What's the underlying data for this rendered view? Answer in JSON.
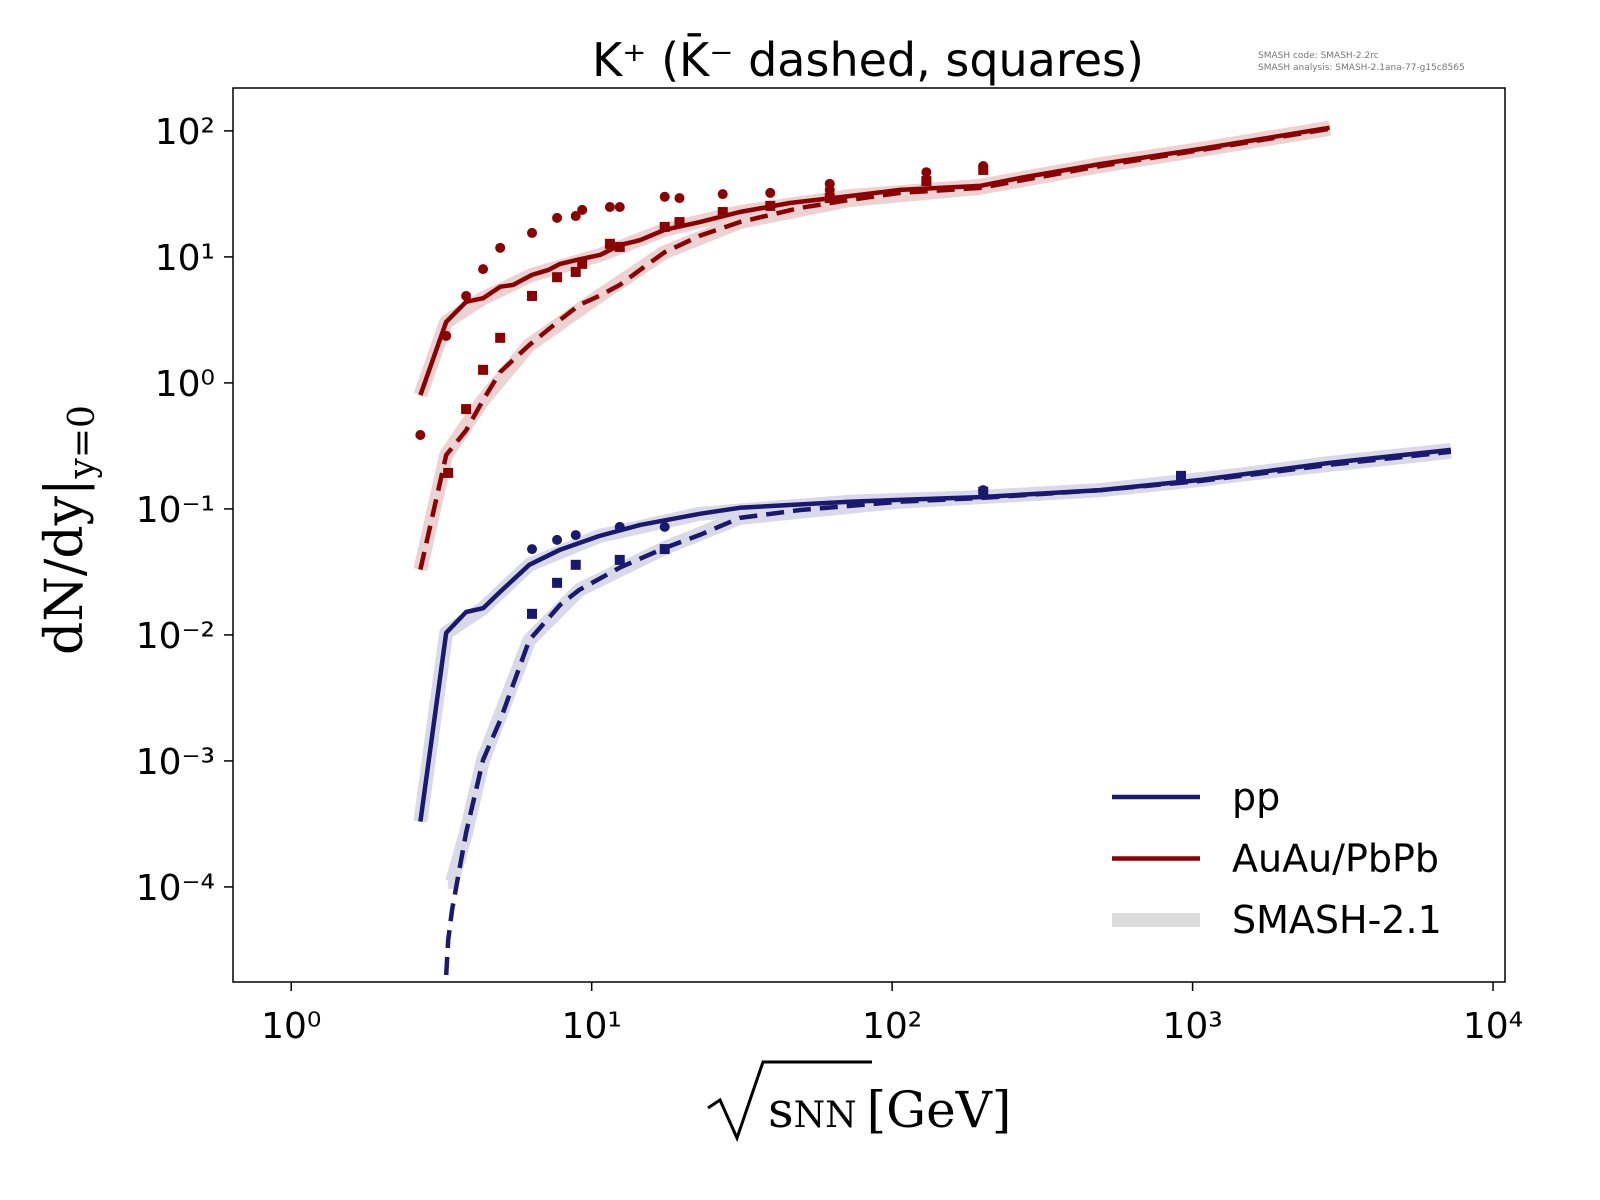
{
  "chart_data": {
    "type": "line",
    "title": "K⁺ (K̄⁻ dashed, squares)",
    "annotations": [
      "SMASH code:      SMASH-2.2rc",
      "SMASH analysis: SMASH-2.1ana-77-g15c8565"
    ],
    "xlabel": {
      "root": "s",
      "sub": "NN",
      "unit": "[GeV]"
    },
    "ylabel": {
      "main": "dN/dy|",
      "sub": "y=0"
    },
    "xscale": "log",
    "yscale": "log",
    "xlim": [
      0.64,
      10960
    ],
    "ylim": [
      1.76e-05,
      219
    ],
    "xticks": [
      {
        "value": 1,
        "label": "10⁰"
      },
      {
        "value": 10,
        "label": "10¹"
      },
      {
        "value": 100,
        "label": "10²"
      },
      {
        "value": 1000,
        "label": "10³"
      },
      {
        "value": 10000,
        "label": "10⁴"
      }
    ],
    "yticks": [
      {
        "value": 0.0001,
        "label": "10⁻⁴"
      },
      {
        "value": 0.001,
        "label": "10⁻³"
      },
      {
        "value": 0.01,
        "label": "10⁻²"
      },
      {
        "value": 0.1,
        "label": "10⁻¹"
      },
      {
        "value": 1,
        "label": "10⁰"
      },
      {
        "value": 10,
        "label": "10¹"
      },
      {
        "value": 100,
        "label": "10²"
      }
    ],
    "series": [
      {
        "style": "band",
        "color": "#ecd2d2",
        "x": [
          2.69,
          3.28,
          4.35,
          6.33,
          10.7,
          17.5,
          31.1,
          72,
          196,
          494,
          1066,
          2860
        ],
        "values": [
          0.8,
          3.05,
          4.7,
          7.2,
          10.4,
          16.4,
          22.7,
          30.4,
          36.6,
          54.6,
          72,
          106
        ]
      },
      {
        "style": "band",
        "color": "#ecd2d2",
        "x": [
          2.69,
          3.28,
          4.35,
          6.2,
          10.6,
          17.5,
          31.1,
          72,
          196,
          494,
          1066,
          2860
        ],
        "values": [
          0.033,
          0.268,
          0.73,
          2.0,
          4.9,
          10.9,
          18.9,
          28.3,
          35.3,
          52.7,
          70.5,
          104
        ]
      },
      {
        "style": "band",
        "color": "#d9d9e8",
        "x": [
          2.69,
          3.28,
          4.35,
          6.2,
          10.6,
          22.9,
          72,
          196,
          494,
          1066,
          2860,
          7240
        ],
        "values": [
          0.00033,
          0.0104,
          0.0163,
          0.036,
          0.061,
          0.0915,
          0.114,
          0.124,
          0.141,
          0.17,
          0.232,
          0.294
        ]
      },
      {
        "style": "band",
        "color": "#d9d9e8",
        "x": [
          3.33,
          3.43,
          3.82,
          4.35,
          6.2,
          9.1,
          17.5,
          31.1,
          106,
          494,
          2860,
          7240
        ],
        "values": [
          0.00011,
          0.00011,
          0.00027,
          0.00102,
          0.0091,
          0.0228,
          0.049,
          0.0848,
          0.114,
          0.141,
          0.224,
          0.284
        ]
      },
      {
        "style": "solid",
        "color": "#8b0000",
        "x": [
          2.69,
          3.28,
          3.82,
          4.35,
          4.96,
          5.48,
          6.33,
          7.2,
          7.85,
          9.0,
          10.7,
          12.4,
          14.5,
          17.5,
          22.9,
          31.1,
          45.6,
          72,
          106,
          196,
          267,
          494,
          1066,
          2860
        ],
        "values": [
          0.8,
          3.05,
          4.4,
          4.7,
          5.8,
          6.0,
          7.2,
          7.9,
          8.8,
          9.5,
          10.4,
          12.4,
          13.6,
          16.4,
          18.9,
          22.7,
          26.8,
          30.4,
          34,
          36.6,
          42.4,
          54.6,
          72,
          106
        ]
      },
      {
        "style": "dashed",
        "color": "#8b0000",
        "x": [
          2.69,
          3.28,
          3.82,
          4.35,
          4.96,
          6.2,
          7.85,
          9.1,
          10.6,
          12.4,
          14.5,
          17.5,
          22.9,
          31.1,
          49.4,
          72,
          106,
          196,
          494,
          1066,
          2860
        ],
        "values": [
          0.033,
          0.268,
          0.42,
          0.73,
          1.22,
          2.0,
          3.16,
          4.16,
          4.9,
          6.0,
          7.9,
          10.9,
          14.7,
          18.9,
          24.5,
          28.3,
          32.2,
          35.3,
          52.7,
          70.5,
          104
        ]
      },
      {
        "style": "solid",
        "color": "#191970",
        "x": [
          2.69,
          3.28,
          3.82,
          4.35,
          4.96,
          6.2,
          7.85,
          10.6,
          14.5,
          22.9,
          31.1,
          72,
          196,
          494,
          1066,
          2860,
          7240
        ],
        "values": [
          0.00033,
          0.0104,
          0.0152,
          0.0163,
          0.022,
          0.036,
          0.0475,
          0.061,
          0.0747,
          0.0915,
          0.102,
          0.114,
          0.124,
          0.141,
          0.17,
          0.232,
          0.294
        ]
      },
      {
        "style": "dashed",
        "color": "#191970",
        "x": [
          3.28,
          3.33,
          3.43,
          3.82,
          4.35,
          4.96,
          6.2,
          7.85,
          9.1,
          12.4,
          17.5,
          22.9,
          31.1,
          49.4,
          106,
          196,
          494,
          1066,
          2860,
          7240
        ],
        "values": [
          2e-05,
          3.8e-05,
          6.6e-05,
          0.00027,
          0.00102,
          0.0021,
          0.0091,
          0.0173,
          0.0228,
          0.0342,
          0.049,
          0.0622,
          0.0848,
          0.098,
          0.114,
          0.122,
          0.141,
          0.167,
          0.224,
          0.284
        ]
      },
      {
        "style": "circle",
        "color": "#8b0000",
        "x": [
          2.69,
          3.28,
          3.82,
          4.35,
          4.96,
          6.33,
          7.67,
          8.85,
          9.3,
          11.5,
          12.4,
          17.5,
          19.6,
          27.3,
          39.3,
          62,
          62,
          130,
          201
        ],
        "values": [
          0.386,
          2.36,
          4.9,
          8.0,
          11.8,
          15.5,
          20.4,
          21.1,
          23.6,
          24.9,
          24.9,
          30,
          29.3,
          31.5,
          32.2,
          38,
          34,
          47,
          52.6
        ]
      },
      {
        "style": "square",
        "color": "#8b0000",
        "x": [
          3.33,
          3.82,
          4.35,
          4.96,
          6.33,
          7.67,
          8.85,
          9.3,
          11.5,
          12.4,
          17.5,
          19.6,
          27.3,
          39.3,
          62,
          130,
          201
        ],
        "values": [
          0.193,
          0.62,
          1.27,
          2.28,
          4.9,
          6.9,
          7.6,
          8.8,
          12.7,
          12,
          17.3,
          18.9,
          22.7,
          25.4,
          29.3,
          40,
          49
        ]
      },
      {
        "style": "circle",
        "color": "#191970",
        "x": [
          6.33,
          7.67,
          8.85,
          12.4,
          17.5,
          201
        ],
        "values": [
          0.048,
          0.0568,
          0.062,
          0.072,
          0.072,
          0.141
        ]
      },
      {
        "style": "square",
        "color": "#191970",
        "x": [
          6.33,
          7.67,
          8.85,
          12.4,
          17.5,
          201,
          915
        ],
        "values": [
          0.0147,
          0.0259,
          0.036,
          0.0394,
          0.048,
          0.137,
          0.183
        ]
      }
    ],
    "legend": {
      "loc": "lower right",
      "entries": [
        {
          "label": "pp",
          "color": "#191970",
          "style": "solid"
        },
        {
          "label": "AuAu/PbPb",
          "color": "#8b0000",
          "style": "solid"
        },
        {
          "label": "SMASH-2.1",
          "color": "#dcdcdc",
          "style": "band"
        }
      ]
    }
  }
}
